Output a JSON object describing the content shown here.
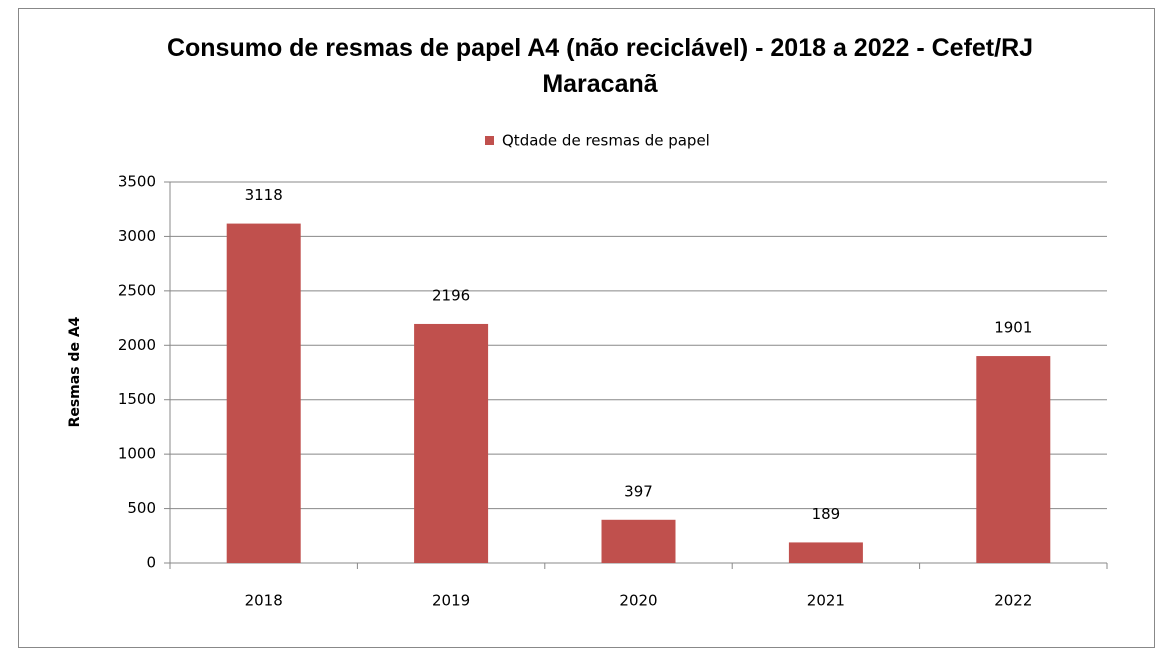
{
  "chart_data": {
    "type": "bar",
    "title": "Consumo de resmas de papel A4 (não reciclável) - 2018 a 2022 - Cefet/RJ Maracanã",
    "y_label": "Resmas de A4",
    "categories": [
      "2018",
      "2019",
      "2020",
      "2021",
      "2022"
    ],
    "series": [
      {
        "name": "Qtdade de resmas de papel",
        "color": "#c0504d",
        "values": [
          3118,
          2196,
          397,
          189,
          1901
        ]
      }
    ],
    "ylim": [
      0,
      3500
    ],
    "yticks": [
      0,
      500,
      1000,
      1500,
      2000,
      2500,
      3000,
      3500
    ],
    "grid": true,
    "legend": "top"
  }
}
